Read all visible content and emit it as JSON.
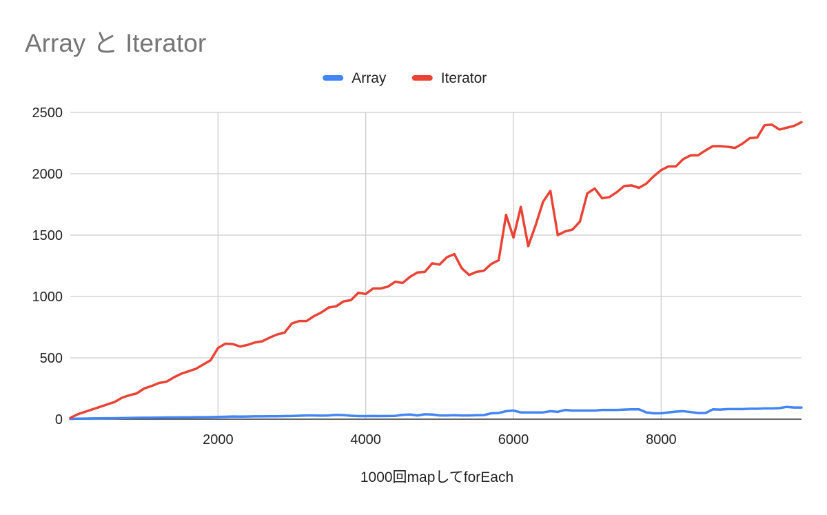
{
  "chart_data": {
    "type": "line",
    "title": "Array と Iterator",
    "xlabel": "1000回mapしてforEach",
    "ylabel": "",
    "xlim": [
      0,
      9900
    ],
    "ylim": [
      0,
      2500
    ],
    "xticks": [
      2000,
      4000,
      6000,
      8000
    ],
    "yticks": [
      0,
      500,
      1000,
      1500,
      2000,
      2500
    ],
    "grid": true,
    "legend_position": "top",
    "x": [
      0,
      100,
      200,
      300,
      400,
      500,
      600,
      700,
      800,
      900,
      1000,
      1100,
      1200,
      1300,
      1400,
      1500,
      1600,
      1700,
      1800,
      1900,
      2000,
      2100,
      2200,
      2300,
      2400,
      2500,
      2600,
      2700,
      2800,
      2900,
      3000,
      3100,
      3200,
      3300,
      3400,
      3500,
      3600,
      3700,
      3800,
      3900,
      4000,
      4100,
      4200,
      4300,
      4400,
      4500,
      4600,
      4700,
      4800,
      4900,
      5000,
      5100,
      5200,
      5300,
      5400,
      5500,
      5600,
      5700,
      5800,
      5900,
      6000,
      6100,
      6200,
      6300,
      6400,
      6500,
      6600,
      6700,
      6800,
      6900,
      7000,
      7100,
      7200,
      7300,
      7400,
      7500,
      7600,
      7700,
      7800,
      7900,
      8000,
      8100,
      8200,
      8300,
      8400,
      8500,
      8600,
      8700,
      8800,
      8900,
      9000,
      9100,
      9200,
      9300,
      9400,
      9500,
      9600,
      9700,
      9800,
      9900
    ],
    "series": [
      {
        "name": "Array",
        "color": "#4285f4",
        "values": [
          2,
          4,
          5,
          6,
          7,
          8,
          8,
          9,
          10,
          11,
          12,
          12,
          13,
          14,
          14,
          15,
          15,
          16,
          16,
          17,
          18,
          20,
          22,
          21,
          22,
          23,
          23,
          24,
          24,
          25,
          26,
          28,
          30,
          30,
          29,
          30,
          35,
          33,
          28,
          25,
          25,
          26,
          25,
          26,
          27,
          35,
          38,
          30,
          40,
          38,
          30,
          30,
          32,
          30,
          30,
          32,
          33,
          48,
          50,
          65,
          70,
          55,
          55,
          55,
          55,
          65,
          60,
          75,
          70,
          70,
          70,
          70,
          75,
          75,
          75,
          78,
          80,
          80,
          55,
          48,
          48,
          55,
          62,
          65,
          58,
          50,
          50,
          80,
          78,
          82,
          82,
          82,
          85,
          85,
          88,
          88,
          90,
          100,
          95,
          95
        ]
      },
      {
        "name": "Iterator",
        "color": "#ea4335",
        "values": [
          10,
          40,
          60,
          80,
          100,
          120,
          140,
          175,
          195,
          210,
          250,
          270,
          295,
          305,
          340,
          370,
          390,
          410,
          445,
          480,
          580,
          615,
          612,
          592,
          605,
          625,
          635,
          665,
          690,
          705,
          780,
          800,
          800,
          840,
          870,
          910,
          920,
          960,
          970,
          1030,
          1020,
          1065,
          1065,
          1080,
          1120,
          1110,
          1160,
          1195,
          1200,
          1270,
          1260,
          1320,
          1345,
          1230,
          1175,
          1200,
          1210,
          1265,
          1295,
          1665,
          1480,
          1730,
          1410,
          1580,
          1770,
          1860,
          1500,
          1530,
          1545,
          1610,
          1840,
          1880,
          1800,
          1810,
          1850,
          1900,
          1905,
          1885,
          1920,
          1980,
          2030,
          2060,
          2060,
          2120,
          2150,
          2150,
          2190,
          2225,
          2225,
          2220,
          2210,
          2245,
          2290,
          2295,
          2395,
          2400,
          2360,
          2375,
          2390,
          2420
        ]
      }
    ]
  }
}
